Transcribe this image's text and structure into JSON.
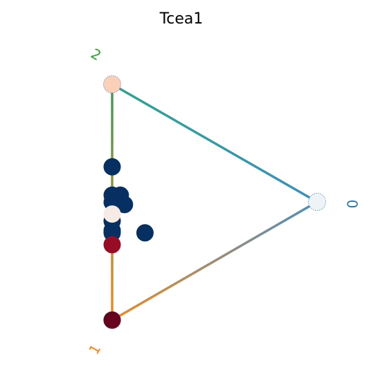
{
  "chart_data": {
    "type": "scatter",
    "title": "Tcea1",
    "vertices": [
      {
        "label": "0",
        "color": "#1f77b4",
        "node_color": "#eef3f8"
      },
      {
        "label": "1",
        "color": "#ff7f0e",
        "node_color": "#67001f"
      },
      {
        "label": "2",
        "color": "#2ca02c",
        "node_color": "#fbd0b9"
      }
    ],
    "edge_colors": {
      "2-0": [
        "#2ca58d",
        "#3a8fc0"
      ],
      "0-1": [
        "#4a8fc0",
        "#f08a24"
      ],
      "1-2": [
        "#f08a24",
        "#3f9a5a"
      ]
    },
    "points": [
      {
        "w": [
          0.0,
          0.35,
          0.65
        ],
        "color": "#053061"
      },
      {
        "w": [
          0.04,
          0.45,
          0.51
        ],
        "color": "#053061"
      },
      {
        "w": [
          0.0,
          0.47,
          0.53
        ],
        "color": "#053061"
      },
      {
        "w": [
          0.06,
          0.48,
          0.46
        ],
        "color": "#053061"
      },
      {
        "w": [
          0.0,
          0.5,
          0.5
        ],
        "color": "#053061"
      },
      {
        "w": [
          0.16,
          0.55,
          0.29
        ],
        "color": "#053061"
      },
      {
        "w": [
          0.0,
          0.58,
          0.42
        ],
        "color": "#053061"
      },
      {
        "w": [
          0.0,
          0.62,
          0.38
        ],
        "color": "#053061"
      },
      {
        "w": [
          0.0,
          0.63,
          0.37
        ],
        "color": "#053061"
      },
      {
        "w": [
          0.0,
          0.55,
          0.45
        ],
        "color": "#f7ebe6"
      },
      {
        "w": [
          0.0,
          0.68,
          0.32
        ],
        "color": "#980d26"
      }
    ]
  }
}
